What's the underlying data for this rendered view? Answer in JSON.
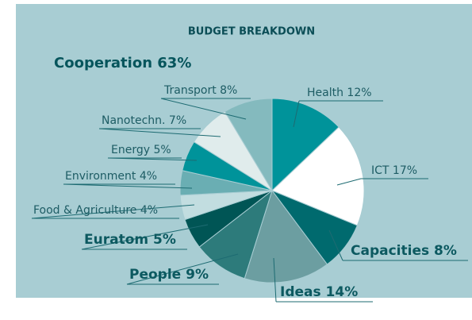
{
  "chart_data": {
    "type": "pie",
    "title": "BUDGET BREAKDOWN",
    "annotation": "Cooperation 63%",
    "values": [
      12,
      17,
      8,
      14,
      9,
      5,
      4,
      4,
      5,
      7,
      8
    ],
    "value_labels": [
      "Health 12%",
      "ICT 17%",
      "Capacities 8%",
      "Ideas 14%",
      "People 9%",
      "Euratom 5%",
      "Food & Agriculture 4%",
      "Environment 4%",
      "Energy 5%",
      "Nanotechn. 7%",
      "Transport 8%"
    ],
    "colors": [
      "#00939a",
      "#ffffff",
      "#006a6e",
      "#6c9ea1",
      "#2d7b7b",
      "#005555",
      "#c2dde0",
      "#6aaeb3",
      "#00939a",
      "#e0ecec",
      "#84babe"
    ]
  }
}
